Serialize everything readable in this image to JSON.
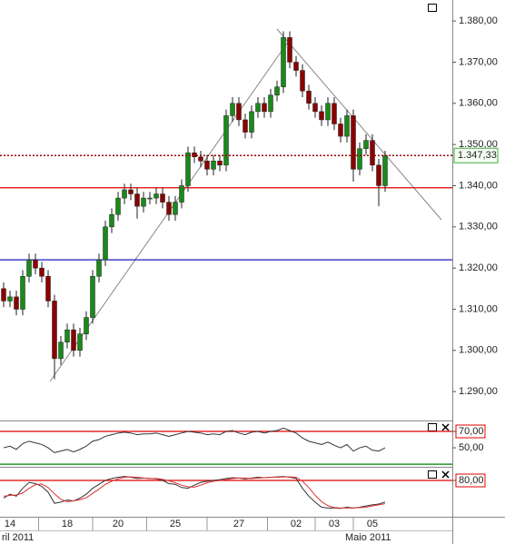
{
  "chart_data": [
    {
      "type": "candlestick",
      "up_color": "#1a8a1a",
      "down_color": "#8b0000",
      "open": [
        1315,
        1312,
        1313,
        1310,
        1318,
        1322,
        1320,
        1318,
        1312,
        1298,
        1302,
        1305,
        1300,
        1304,
        1308,
        1318,
        1322,
        1330,
        1333,
        1337,
        1339,
        1338,
        1335,
        1337,
        1337,
        1338,
        1336,
        1333,
        1336,
        1340,
        1348,
        1347,
        1346,
        1344,
        1346,
        1345,
        1357,
        1360,
        1356,
        1353,
        1358,
        1360,
        1358,
        1362,
        1364,
        1376,
        1370,
        1368,
        1363,
        1360,
        1358,
        1356,
        1360,
        1355,
        1352,
        1357,
        1344,
        1349,
        1351,
        1345,
        1340
      ],
      "high": [
        1316.5,
        1314.5,
        1314.5,
        1319.5,
        1323.5,
        1323.5,
        1321.5,
        1319.5,
        1313.5,
        1303.5,
        1306.5,
        1306.5,
        1305.5,
        1309.5,
        1319.5,
        1323.5,
        1331.5,
        1334.5,
        1338.5,
        1340.5,
        1340.5,
        1339.5,
        1338.5,
        1338.5,
        1339.5,
        1339.5,
        1337.5,
        1337.5,
        1341.5,
        1349.5,
        1349.5,
        1348.5,
        1347.5,
        1347.5,
        1347.5,
        1358.5,
        1361.5,
        1361.5,
        1357.5,
        1359.5,
        1361.5,
        1361.5,
        1363.5,
        1365.5,
        1377.5,
        1377.5,
        1371.5,
        1369.5,
        1364.5,
        1361.5,
        1359.5,
        1361.5,
        1361.5,
        1356.5,
        1358.5,
        1358.5,
        1350.5,
        1352.5,
        1352.5,
        1346.5,
        1348.5
      ],
      "low": [
        1310.5,
        1310.5,
        1308.5,
        1308.5,
        1316.5,
        1318.5,
        1316.5,
        1310.5,
        1293,
        1296.5,
        1300.5,
        1298.5,
        1298.5,
        1302.5,
        1306.5,
        1316.5,
        1320.5,
        1328.5,
        1331.5,
        1335.5,
        1336.5,
        1332,
        1333.5,
        1335.5,
        1335.5,
        1334.5,
        1331.5,
        1331.5,
        1334.5,
        1338.5,
        1345.5,
        1344.5,
        1342.5,
        1342.5,
        1343.5,
        1343.5,
        1355.5,
        1354.5,
        1351.5,
        1351.5,
        1356.5,
        1356.5,
        1356.5,
        1360.5,
        1362.5,
        1368.5,
        1366.5,
        1361.5,
        1358.5,
        1356.5,
        1354.5,
        1354.5,
        1353.5,
        1350.5,
        1350.5,
        1341,
        1342.5,
        1347.5,
        1343.5,
        1335,
        1338.5
      ],
      "close": [
        1312,
        1313,
        1310,
        1318,
        1322,
        1320,
        1318,
        1312,
        1298,
        1302,
        1305,
        1300,
        1304,
        1308,
        1318,
        1322,
        1330,
        1333,
        1337,
        1339,
        1338,
        1335,
        1337,
        1337,
        1338,
        1336,
        1333,
        1336,
        1340,
        1348,
        1347,
        1346,
        1344,
        1346,
        1345,
        1357,
        1360,
        1356,
        1353,
        1358,
        1360,
        1358,
        1362,
        1364,
        1376,
        1370,
        1368,
        1363,
        1360,
        1358,
        1356,
        1360,
        1355,
        1352,
        1357,
        1344,
        1349,
        1351,
        1345,
        1340,
        1347.33
      ],
      "ylim": [
        1283.2,
        1385.1
      ],
      "yticks": [
        {
          "value": 1290,
          "label": "1.290,00"
        },
        {
          "value": 1300,
          "label": "1.300,00"
        },
        {
          "value": 1310,
          "label": "1.310,00"
        },
        {
          "value": 1320,
          "label": "1.320,00"
        },
        {
          "value": 1330,
          "label": "1.330,00"
        },
        {
          "value": 1340,
          "label": "1.340,00"
        },
        {
          "value": 1350,
          "label": "1.350,00"
        },
        {
          "value": 1360,
          "label": "1.360,00"
        },
        {
          "value": 1370,
          "label": "1.370,00"
        },
        {
          "value": 1380,
          "label": "1.380,00"
        }
      ],
      "hlines": [
        {
          "value": 1339.5,
          "color": "#e00000"
        },
        {
          "value": 1322,
          "color": "#0000c0"
        }
      ],
      "last_price": {
        "value": 1347.33,
        "label": "1.347,33",
        "color": "#a00000"
      },
      "xticks": [
        {
          "value": 1,
          "label": "14"
        },
        {
          "value": 10,
          "label": "18"
        },
        {
          "value": 18,
          "label": "20"
        },
        {
          "value": 27,
          "label": "25"
        },
        {
          "value": 37,
          "label": "27"
        },
        {
          "value": 46,
          "label": "02"
        },
        {
          "value": 52,
          "label": "03"
        },
        {
          "value": 58,
          "label": "05"
        }
      ],
      "months": [
        "ril 2011",
        "Maio 2011"
      ]
    },
    {
      "type": "line",
      "ylim": [
        29,
        80
      ],
      "yticks": [
        {
          "value": 70,
          "label": "70,00"
        },
        {
          "value": 50,
          "label": "50,00"
        }
      ],
      "hlines": [
        {
          "value": 70,
          "color": "#e00000"
        },
        {
          "value": 30,
          "color": "#008000"
        }
      ],
      "series": [
        {
          "color": "#333333",
          "values": [
            50,
            52,
            48,
            55,
            58,
            56,
            54,
            50,
            44,
            46,
            48,
            45,
            48,
            52,
            58,
            60,
            64,
            66,
            68,
            69,
            68,
            66,
            67,
            67,
            68,
            66,
            64,
            66,
            68,
            70,
            69,
            68,
            66,
            67,
            66,
            70,
            71,
            68,
            66,
            69,
            70,
            68,
            70,
            71,
            74,
            71,
            68,
            62,
            58,
            56,
            54,
            57,
            53,
            50,
            54,
            46,
            50,
            52,
            47,
            46,
            50
          ]
        }
      ]
    },
    {
      "type": "line",
      "ylim": [
        -10,
        110
      ],
      "yticks": [
        {
          "value": 80,
          "label": "80,00"
        }
      ],
      "hlines": [
        {
          "value": 80,
          "color": "#e00000"
        }
      ],
      "series": [
        {
          "color": "#333333",
          "values": [
            35,
            45,
            40,
            60,
            75,
            72,
            65,
            50,
            22,
            25,
            30,
            28,
            35,
            45,
            60,
            70,
            80,
            85,
            88,
            90,
            88,
            85,
            86,
            85,
            84,
            80,
            72,
            70,
            62,
            60,
            68,
            75,
            78,
            80,
            82,
            85,
            87,
            86,
            84,
            86,
            88,
            87,
            88,
            89,
            90,
            88,
            85,
            60,
            40,
            25,
            12,
            10,
            10,
            9,
            12,
            10,
            12,
            15,
            18,
            20,
            25
          ]
        },
        {
          "color": "#e03030",
          "values": [
            40,
            42,
            43,
            48,
            60,
            69,
            71,
            62,
            46,
            32,
            26,
            28,
            31,
            36,
            47,
            58,
            70,
            78,
            84,
            88,
            89,
            88,
            86,
            85,
            85,
            83,
            79,
            74,
            68,
            64,
            63,
            68,
            74,
            78,
            80,
            82,
            85,
            86,
            86,
            85,
            86,
            87,
            88,
            88,
            89,
            89,
            88,
            78,
            62,
            42,
            26,
            16,
            11,
            10,
            10,
            10,
            11,
            12,
            15,
            18,
            21
          ]
        }
      ]
    }
  ]
}
